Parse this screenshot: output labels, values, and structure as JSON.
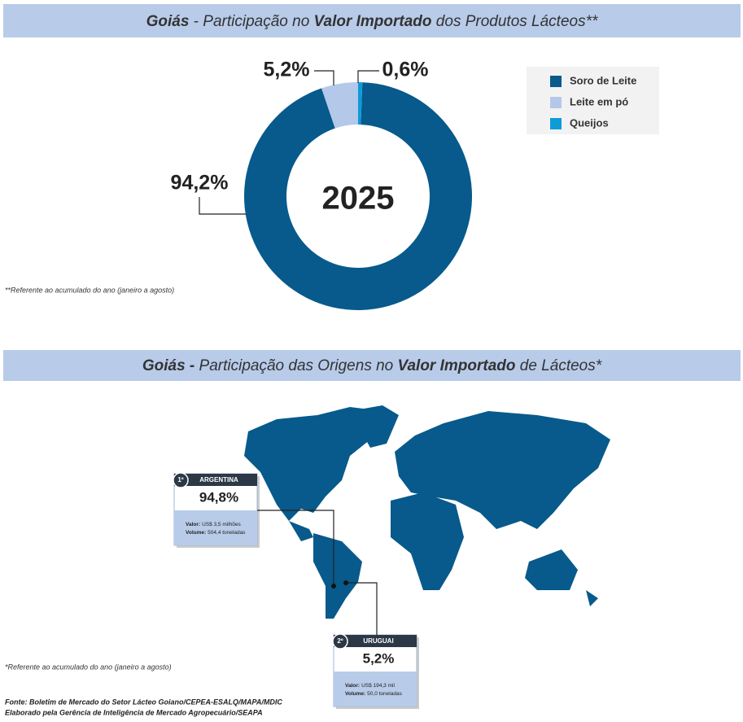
{
  "chart_data": {
    "type": "pie",
    "title_parts": [
      "Goiás",
      " - Participação no ",
      "Valor Importado",
      " dos Produtos Lácteos**"
    ],
    "center_label": "2025",
    "categories": [
      "Soro de Leite",
      "Leite em pó",
      "Queijos"
    ],
    "values": [
      94.2,
      5.2,
      0.6
    ],
    "value_labels": [
      "94,2%",
      "5,2%",
      "0,6%"
    ],
    "colors": [
      "#075a8b",
      "#b4c8ea",
      "#0e9bd8"
    ],
    "legend": "top-right",
    "footnote": "**Referente ao acumulado do ano (janeiro a agosto)"
  },
  "map_section": {
    "title_parts": [
      "Goiás -",
      " Participação das Origens no ",
      "Valor Importado",
      " de Lácteos*"
    ],
    "callouts": [
      {
        "rank": "1º",
        "country": "ARGENTINA",
        "share": "94,8%",
        "valor_label": "Valor:",
        "valor": "US$ 3,5 milhões",
        "volume_label": "Volume:",
        "volume": "504,4 toneladas"
      },
      {
        "rank": "2º",
        "country": "URUGUAI",
        "share": "5,2%",
        "valor_label": "Valor:",
        "valor": "US$ 194,3 mil",
        "volume_label": "Volume:",
        "volume": "50,0 toneladas"
      }
    ],
    "footnote": "*Referente ao acumulado do ano (janeiro a agosto)"
  },
  "footer": {
    "source": "Fonte: Boletim de Mercado do Setor Lácteo Goiano/CEPEA-ESALQ/MAPA/MDIC",
    "credit": "Elaborado pela Gerência de Inteligência de Mercado Agropecuário/SEAPA"
  }
}
